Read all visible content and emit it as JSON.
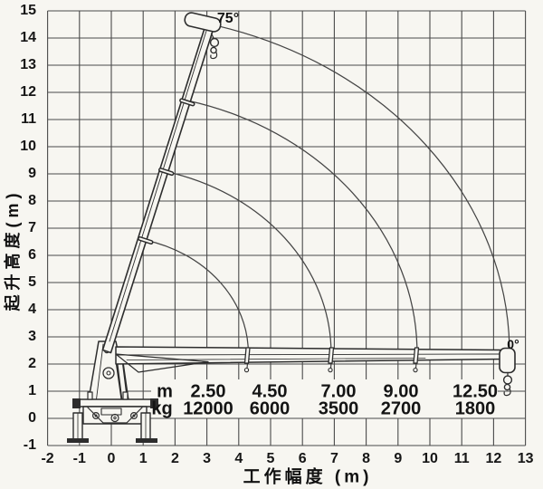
{
  "figure": {
    "background": "#f7f6f1",
    "grid_color": "#4a4a4a",
    "arc_color": "#454545",
    "draw_color": "#2d2d2d",
    "text_color": "#141414"
  },
  "chart_data": {
    "type": "line",
    "subtype": "crane-working-range-load-chart",
    "title": "",
    "xlabel": "工作幅度 (m)",
    "ylabel": "起升高度(m)",
    "xlim": [
      -2,
      13
    ],
    "ylim": [
      -1,
      15
    ],
    "x_ticks": [
      -2,
      -1,
      0,
      1,
      2,
      3,
      4,
      5,
      6,
      7,
      8,
      9,
      10,
      11,
      12,
      13
    ],
    "y_ticks": [
      15,
      14,
      13,
      12,
      11,
      10,
      9,
      8,
      7,
      6,
      5,
      4,
      3,
      2,
      1,
      0,
      -1
    ],
    "grid": true,
    "boom_pivot": {
      "x": 0,
      "y": 2.4
    },
    "boom_max_angle_deg": 75,
    "boom_min_angle_deg": 0,
    "annotations": {
      "max_angle_label": "75°",
      "min_angle_label": "0°"
    },
    "reach_arcs_radius_m": [
      4.3,
      6.9,
      9.6,
      12.5
    ],
    "load_table": {
      "rows": [
        {
          "label": "m",
          "values": [
            "2.50",
            "4.50",
            "7.00",
            "9.00",
            "12.50"
          ]
        },
        {
          "label": "kg",
          "values": [
            "12000",
            "6000",
            "3500",
            "2700",
            "1800"
          ]
        }
      ]
    }
  }
}
